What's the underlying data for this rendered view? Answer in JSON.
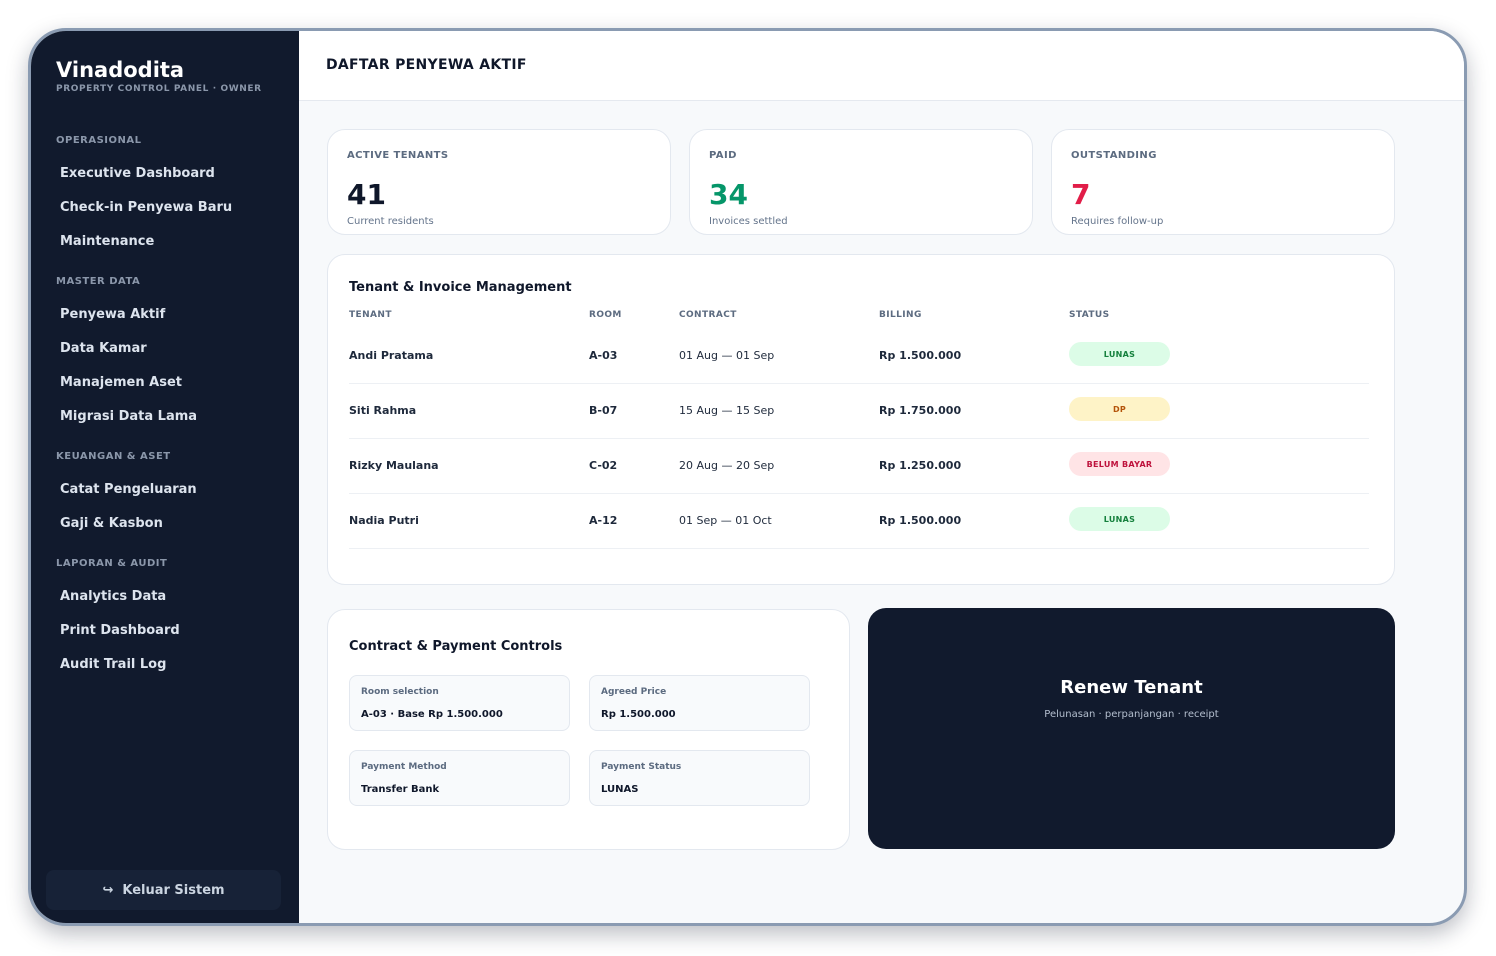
{
  "sidebar": {
    "brand": "Vinadodita",
    "subtitle": "PROPERTY CONTROL PANEL · OWNER",
    "sections": [
      {
        "title": "OPERASIONAL",
        "items": [
          "Executive Dashboard",
          "Check-in Penyewa Baru",
          "Maintenance"
        ]
      },
      {
        "title": "MASTER DATA",
        "items": [
          "Penyewa Aktif",
          "Data Kamar",
          "Manajemen Aset",
          "Migrasi Data Lama"
        ]
      },
      {
        "title": "KEUANGAN & ASET",
        "items": [
          "Catat Pengeluaran",
          "Gaji & Kasbon"
        ]
      },
      {
        "title": "LAPORAN & AUDIT",
        "items": [
          "Analytics Data",
          "Print Dashboard",
          "Audit Trail Log"
        ]
      }
    ],
    "logout_icon": "↪",
    "logout_label": "Keluar Sistem"
  },
  "header": {
    "title": "DAFTAR PENYEWA AKTIF"
  },
  "stats": [
    {
      "label": "ACTIVE TENANTS",
      "value": "41",
      "sub": "Current residents",
      "color": "#0f172a"
    },
    {
      "label": "PAID",
      "value": "34",
      "sub": "Invoices settled",
      "color": "#059669"
    },
    {
      "label": "OUTSTANDING",
      "value": "7",
      "sub": "Requires follow-up",
      "color": "#e11d48"
    }
  ],
  "table": {
    "title": "Tenant & Invoice Management",
    "columns": [
      "TENANT",
      "ROOM",
      "CONTRACT",
      "BILLING",
      "STATUS"
    ],
    "rows": [
      {
        "tenant": "Andi Pratama",
        "room": "A-03",
        "contract": "01 Aug — 01 Sep",
        "billing": "Rp 1.500.000",
        "status": "LUNAS",
        "status_color": "#15803d",
        "status_bg": "#dcfce7"
      },
      {
        "tenant": "Siti Rahma",
        "room": "B-07",
        "contract": "15 Aug — 15 Sep",
        "billing": "Rp 1.750.000",
        "status": "DP",
        "status_color": "#b45309",
        "status_bg": "#fef3c7"
      },
      {
        "tenant": "Rizky Maulana",
        "room": "C-02",
        "contract": "20 Aug — 20 Sep",
        "billing": "Rp 1.250.000",
        "status": "BELUM BAYAR",
        "status_color": "#be123c",
        "status_bg": "#ffe4e6"
      },
      {
        "tenant": "Nadia Putri",
        "room": "A-12",
        "contract": "01 Sep — 01 Oct",
        "billing": "Rp 1.500.000",
        "status": "LUNAS",
        "status_color": "#15803d",
        "status_bg": "#dcfce7"
      }
    ]
  },
  "controls": {
    "title": "Contract & Payment Controls",
    "fields": [
      {
        "label": "Room selection",
        "value": "A-03 · Base Rp 1.500.000"
      },
      {
        "label": "Agreed Price",
        "value": "Rp 1.500.000"
      },
      {
        "label": "Payment Method",
        "value": "Transfer Bank"
      },
      {
        "label": "Payment Status",
        "value": "LUNAS"
      }
    ]
  },
  "renew": {
    "title": "Renew Tenant",
    "subtitle": "Pelunasan · perpanjangan · receipt"
  }
}
